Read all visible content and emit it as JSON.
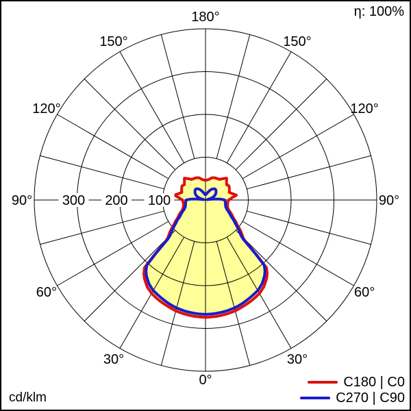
{
  "title_area": {
    "efficiency": "η: 100%"
  },
  "footer": {
    "unit": "cd/klm"
  },
  "legend": {
    "items": [
      {
        "label": "C180 | C0",
        "color": "#dd1111"
      },
      {
        "label": "C270 | C90",
        "color": "#1b1bcc"
      }
    ]
  },
  "chart_data": {
    "type": "polar",
    "subtype": "luminous-intensity-distribution",
    "unit": "cd/klm",
    "efficiency": "η: 100%",
    "radial_ticks": [
      100,
      200,
      300
    ],
    "radial_max": 400,
    "angle_grid_step_deg": 15,
    "angle_labels_deg": [
      0,
      30,
      60,
      90,
      120,
      150,
      180
    ],
    "grid_color": "#000000",
    "fill_color": "#ffff99",
    "legend_position": "bottom-right",
    "series": [
      {
        "name": "C180 | C0",
        "color": "#dd1111",
        "fill": true,
        "symmetric": true,
        "points": [
          [
            0,
            274
          ],
          [
            5,
            273
          ],
          [
            10,
            271
          ],
          [
            15,
            268
          ],
          [
            20,
            263
          ],
          [
            25,
            258
          ],
          [
            30,
            252
          ],
          [
            34,
            244
          ],
          [
            38,
            232
          ],
          [
            40,
            224
          ],
          [
            42,
            213
          ],
          [
            43,
            175
          ],
          [
            44,
            133
          ],
          [
            45,
            124
          ],
          [
            47,
            116
          ],
          [
            50,
            103
          ],
          [
            52,
            94
          ],
          [
            55,
            85
          ],
          [
            57,
            78
          ],
          [
            61,
            70
          ],
          [
            66,
            60
          ],
          [
            71,
            55
          ],
          [
            76,
            53
          ],
          [
            82,
            52
          ],
          [
            86,
            53
          ],
          [
            90,
            54
          ],
          [
            95,
            62
          ],
          [
            99,
            73
          ],
          [
            102,
            67
          ],
          [
            105,
            62
          ],
          [
            108,
            58
          ],
          [
            112,
            60
          ],
          [
            116,
            62
          ],
          [
            121,
            64
          ],
          [
            126,
            61
          ],
          [
            131,
            65
          ],
          [
            136,
            71
          ],
          [
            141,
            64
          ],
          [
            146,
            58
          ],
          [
            152,
            57
          ],
          [
            158,
            56
          ],
          [
            164,
            54
          ],
          [
            170,
            49
          ],
          [
            175,
            47
          ],
          [
            180,
            46
          ]
        ]
      },
      {
        "name": "C270 | C90",
        "color": "#1b1bcc",
        "fill": false,
        "symmetric": true,
        "points": [
          [
            0,
            267
          ],
          [
            5,
            266
          ],
          [
            10,
            264
          ],
          [
            15,
            261
          ],
          [
            20,
            256
          ],
          [
            25,
            250
          ],
          [
            30,
            244
          ],
          [
            34,
            236
          ],
          [
            38,
            224
          ],
          [
            40,
            216
          ],
          [
            42,
            205
          ],
          [
            43,
            168
          ],
          [
            44,
            126
          ],
          [
            45,
            117
          ],
          [
            47,
            109
          ],
          [
            50,
            96
          ],
          [
            52,
            88
          ],
          [
            55,
            79
          ],
          [
            57,
            72
          ],
          [
            61,
            64
          ],
          [
            66,
            55
          ],
          [
            71,
            50
          ],
          [
            76,
            48
          ],
          [
            82,
            47
          ],
          [
            86,
            46
          ],
          [
            90,
            45
          ],
          [
            93,
            36
          ],
          [
            96,
            22
          ],
          [
            99,
            10
          ],
          [
            102,
            4
          ],
          [
            105,
            7
          ],
          [
            108,
            14
          ],
          [
            112,
            20
          ],
          [
            116,
            24
          ],
          [
            120,
            27
          ],
          [
            125,
            30
          ],
          [
            130,
            32
          ],
          [
            135,
            34
          ],
          [
            140,
            34
          ],
          [
            145,
            32
          ],
          [
            150,
            29
          ],
          [
            155,
            25
          ],
          [
            160,
            21
          ],
          [
            165,
            17
          ],
          [
            170,
            15
          ],
          [
            175,
            13
          ],
          [
            180,
            12
          ]
        ]
      }
    ]
  }
}
